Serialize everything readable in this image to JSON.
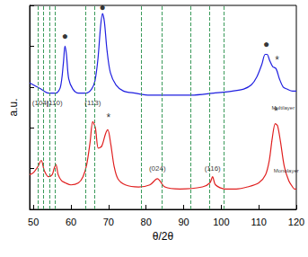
{
  "chart_data": {
    "type": "line",
    "x_label": "θ/2θ",
    "y_label": "a.u.",
    "xlim": [
      49,
      120
    ],
    "xticks": [
      50,
      60,
      70,
      80,
      90,
      100,
      110,
      120
    ],
    "ylim": [
      0,
      100
    ],
    "yticks": [
      0,
      20,
      40,
      60,
      80,
      100
    ],
    "tick_labels": "x",
    "grid": false,
    "series": [
      {
        "name": "Multilayer",
        "color": "#1f1fe0",
        "x": [
          49,
          50,
          52,
          54,
          56,
          57.2,
          58,
          58.4,
          58.8,
          59.4,
          60.5,
          62,
          64,
          65.5,
          66.4,
          67.2,
          67.9,
          68.4,
          68.9,
          69.6,
          70.5,
          72,
          74,
          77,
          81,
          86,
          92,
          98,
          103,
          106,
          108,
          109.5,
          110.8,
          111.7,
          112.2,
          112.9,
          113.7,
          114.6,
          115.5,
          116.5,
          117.5,
          119,
          120
        ],
        "values": [
          62,
          61,
          59,
          57,
          57,
          60,
          72,
          80,
          76,
          64,
          59,
          57,
          57,
          59,
          63,
          74,
          90,
          96,
          92,
          78,
          67,
          61,
          58,
          57,
          56,
          56,
          56,
          57,
          58,
          59,
          61,
          65,
          71,
          76,
          76,
          73,
          70,
          69,
          64,
          60,
          59,
          58,
          58
        ]
      },
      {
        "name": "Monolayer",
        "color": "#e01f1f",
        "x": [
          49,
          50,
          51.2,
          52.1,
          52.9,
          54,
          55,
          55.5,
          56,
          56.6,
          57.5,
          58.5,
          60,
          62,
          63.2,
          64.2,
          65.1,
          65.8,
          66.5,
          67.3,
          68.2,
          69.2,
          69.8,
          70.6,
          71.5,
          72.5,
          74.5,
          78,
          81,
          83,
          85,
          89,
          95,
          97,
          97.7,
          98.5,
          101,
          104,
          107,
          110,
          111.8,
          112.8,
          113.6,
          114.4,
          115,
          115.8,
          116.8,
          118,
          119,
          119.5,
          120
        ],
        "values": [
          17,
          18,
          21,
          24,
          19,
          16,
          17,
          20,
          22,
          17,
          14,
          13,
          12,
          13,
          16,
          22,
          33,
          43,
          40,
          30,
          31,
          37,
          39,
          32,
          21,
          15,
          12,
          11,
          12,
          15,
          11,
          10,
          11,
          13,
          16,
          12,
          10,
          10,
          11,
          13,
          17,
          24,
          35,
          42,
          41,
          33,
          21,
          14,
          11,
          10,
          10
        ]
      }
    ],
    "reference_lines": {
      "x": [
        51.2,
        52.7,
        54.3,
        55.8,
        63.8,
        66.3,
        78.7,
        84.2,
        91.8,
        96.8,
        100.6
      ],
      "color": "#3a9a5a",
      "line_style": "dashed"
    },
    "markers": [
      {
        "text": "●",
        "x": 58.4,
        "y": 85
      },
      {
        "text": "●",
        "x": 68.4,
        "y": 99
      },
      {
        "text": "●",
        "x": 112,
        "y": 81
      },
      {
        "text": "*",
        "x": 114.9,
        "y": 73
      },
      {
        "text": "*",
        "x": 70,
        "y": 45
      },
      {
        "text": "*",
        "x": 114.6,
        "y": 48
      }
    ],
    "peak_labels": [
      {
        "text": "(104)",
        "x": 51.9,
        "y": 52
      },
      {
        "text": "(110)",
        "x": 55.6,
        "y": 52
      },
      {
        "text": "(113)",
        "x": 65.8,
        "y": 52
      },
      {
        "text": "(024)",
        "x": 83,
        "y": 20
      },
      {
        "text": "(116)",
        "x": 97.7,
        "y": 20
      }
    ],
    "series_labels": [
      {
        "text": "Multilayer",
        "x": 116.5,
        "y": 50
      },
      {
        "text": "Monolayer",
        "x": 117.3,
        "y": 19
      }
    ]
  }
}
